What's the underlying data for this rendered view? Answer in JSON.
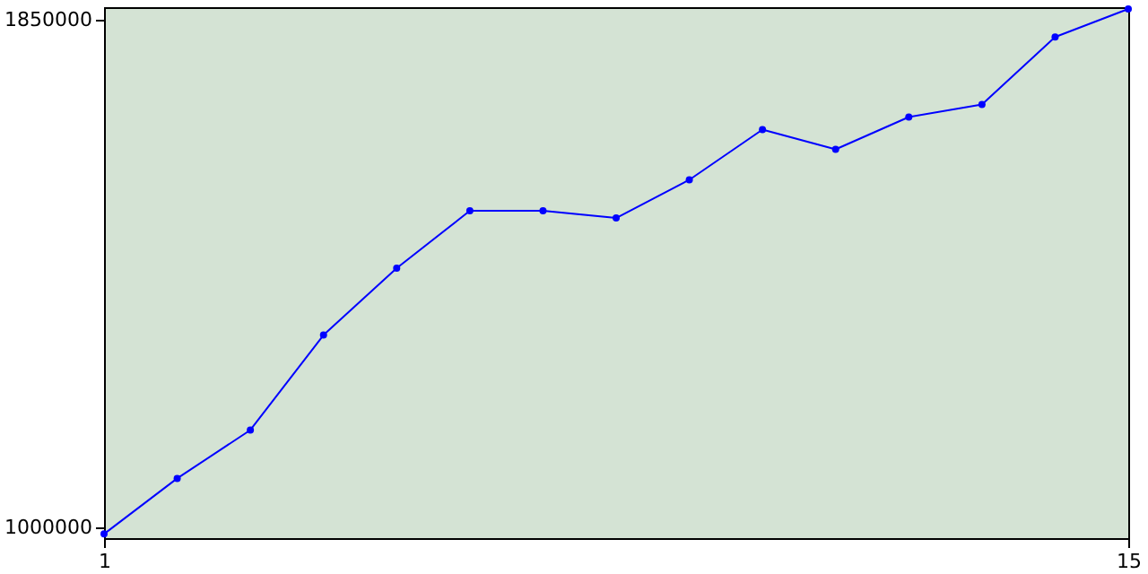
{
  "chart_data": {
    "type": "line",
    "x": [
      1,
      2,
      3,
      4,
      5,
      6,
      7,
      8,
      9,
      10,
      11,
      12,
      13,
      14,
      15
    ],
    "series": [
      {
        "color": "#0000ff",
        "values": [
          989000,
          1082000,
          1163000,
          1322000,
          1434000,
          1530000,
          1530000,
          1518000,
          1582000,
          1666000,
          1633000,
          1687000,
          1708000,
          1821000,
          1868000
        ]
      }
    ],
    "xlim": [
      1,
      15
    ],
    "xticks": [
      1,
      15
    ],
    "ylim": [
      982000,
      1871000
    ],
    "yticks": [
      1000000,
      1850000
    ],
    "legend": false,
    "marker": "circle",
    "line_style": "solid"
  }
}
